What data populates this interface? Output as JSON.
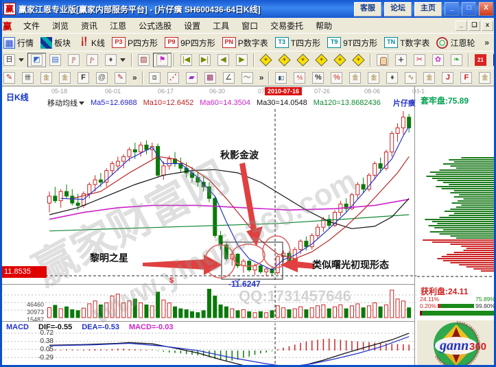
{
  "window": {
    "title": "赢家江恩专业版[赢家内部服务平台] - [片仔癀  SH600436-64日K线]",
    "buttons": [
      "客服",
      "论坛",
      "主页"
    ],
    "app_icon_glyph": "赢"
  },
  "menu": {
    "items": [
      "文件",
      "浏览",
      "资讯",
      "江恩",
      "公式选股",
      "设置",
      "工具",
      "窗口",
      "交易委托",
      "帮助"
    ]
  },
  "misc": {
    "more": "»"
  },
  "toolbar1": {
    "items": [
      {
        "icon": "grid",
        "label": "行情"
      },
      {
        "icon": "blocks",
        "label": "板块"
      },
      {
        "icon": "candle",
        "label": "K线"
      },
      {
        "badge": "P3",
        "label": "P四方形"
      },
      {
        "badge": "P9",
        "label": "9P四方形"
      },
      {
        "badge": "PN",
        "label": "P数字表"
      },
      {
        "badge": "T3",
        "tbadge": true,
        "label": "T四方形"
      },
      {
        "badge": "T9",
        "tbadge": true,
        "label": "9T四方形"
      },
      {
        "badge": "TN",
        "tbadge": true,
        "label": "T数字表"
      },
      {
        "icon": "target",
        "label": "江恩轮"
      }
    ]
  },
  "toolbar2": {
    "icons": [
      "period",
      "zigzag",
      "doc",
      "wave3",
      "wave9",
      "spindle",
      "sep",
      "pattern",
      "flag",
      "sep",
      "first",
      "last",
      "back",
      "forward",
      "sep",
      "dia",
      "dia",
      "dia",
      "dia",
      "dia",
      "dia",
      "sep",
      "hand",
      "cross",
      "scissors",
      "clip",
      "leaf",
      "sep",
      "calendar",
      "calc",
      "journal",
      "save",
      "net",
      "computer"
    ]
  },
  "toolbar3": {
    "groups": [
      {
        "icons": [
          "pen",
          "hatch",
          "goldA",
          "goldB",
          "fline",
          "spiral",
          "pen2"
        ],
        "more": "»"
      },
      {
        "icons": [
          "boxsel",
          "fan",
          "poly",
          "shade",
          "angle",
          "arcline"
        ],
        "more": "»"
      },
      {
        "icons": [
          "hist",
          "pct1",
          "pct",
          "pct2",
          "goldc",
          "golds",
          "spindle",
          "wavea",
          "goldd",
          "jl",
          "fl",
          "golde",
          "tunnel",
          "gannbox",
          "wavec"
        ],
        "more": ""
      }
    ]
  },
  "chart": {
    "period_label": "日K线",
    "ma_selector": "移动均线",
    "dates": [
      "05-18",
      "06-01",
      "06-17",
      "06-30",
      "07",
      "07-26",
      "08-06",
      "08-1"
    ],
    "crosshair_date": "2010-07-16",
    "legend": [
      {
        "t": "Ma5=12.6988",
        "c": "#2222cc"
      },
      {
        "t": "Ma10=12.6452",
        "c": "#bb2222"
      },
      {
        "t": "Ma60=14.3504",
        "c": "#cc22cc"
      },
      {
        "t": "Ma30=14.0548",
        "c": "#111111"
      },
      {
        "t": "Ma120=13.8682436",
        "c": "#118833"
      }
    ],
    "stock_name": "片仔癀",
    "price_tag": "11.8535",
    "min_label": "-11.6247",
    "dollar_mark": "$",
    "anno_autumn": "秋影金波",
    "anno_dawn_star": "黎明之星",
    "anno_dawn_pattern": "类似曙光初现形态",
    "watermark_brand": "赢家财富网",
    "watermark_site": "www.yingjia360.com",
    "watermark_qq": "QQ:1731457646"
  },
  "right_panel": {
    "trapped": "套牢盘:75.89",
    "profit": "获利盘:24.11",
    "pct_a_left": "24.11%",
    "pct_a_right": "75.89%",
    "pct_b_left": "0.20%",
    "pct_b_right": "99.80%"
  },
  "volume": {
    "ticks": [
      "46460",
      "30973",
      "15487"
    ]
  },
  "macd": {
    "name": "MACD",
    "dif": "DIF=-0.55",
    "dea": "DEA=-0.53",
    "macd": "MACD=-0.03",
    "ticks": [
      "0.72",
      "0.38",
      "0.05",
      "-0.29"
    ]
  },
  "logo": {
    "word": "gann",
    "num": "360"
  },
  "chart_data": {
    "type": "candlestick",
    "symbol": "SH600436 片仔癀",
    "colors": {
      "up": "#cc2222",
      "down": "#0a7a0a",
      "ma5": "#2233cc",
      "ma10": "#bb2222",
      "ma30": "#111111",
      "ma60": "#cc22cc",
      "ma120": "#118833"
    },
    "candles": [
      [
        13.2,
        13.45,
        13.0,
        13.35
      ],
      [
        13.35,
        13.55,
        13.2,
        13.25
      ],
      [
        13.25,
        13.5,
        13.1,
        13.45
      ],
      [
        13.45,
        13.6,
        13.3,
        13.35
      ],
      [
        13.35,
        13.5,
        13.15,
        13.2
      ],
      [
        13.2,
        13.4,
        13.05,
        13.15
      ],
      [
        13.15,
        13.45,
        13.1,
        13.4
      ],
      [
        13.4,
        13.65,
        13.3,
        13.6
      ],
      [
        13.6,
        13.8,
        13.45,
        13.7
      ],
      [
        13.7,
        13.85,
        13.55,
        13.65
      ],
      [
        13.65,
        13.95,
        13.55,
        13.9
      ],
      [
        13.9,
        14.1,
        13.8,
        14.05
      ],
      [
        14.0,
        14.2,
        13.9,
        14.1
      ],
      [
        14.1,
        14.25,
        13.95,
        14.2
      ],
      [
        14.2,
        14.4,
        14.1,
        14.35
      ],
      [
        14.35,
        14.5,
        14.15,
        14.3
      ],
      [
        14.3,
        14.52,
        14.2,
        14.45
      ],
      [
        14.45,
        14.55,
        14.25,
        14.35
      ],
      [
        14.35,
        14.5,
        14.15,
        14.42
      ],
      [
        14.42,
        14.48,
        13.75,
        13.8
      ],
      [
        13.8,
        14.1,
        13.7,
        14.0
      ],
      [
        14.0,
        14.22,
        13.92,
        14.15
      ],
      [
        14.15,
        14.3,
        13.98,
        14.05
      ],
      [
        14.05,
        14.18,
        13.85,
        13.95
      ],
      [
        13.95,
        14.08,
        13.75,
        13.85
      ],
      [
        13.85,
        13.98,
        13.65,
        13.75
      ],
      [
        13.75,
        13.88,
        13.55,
        13.65
      ],
      [
        13.65,
        13.78,
        13.45,
        13.55
      ],
      [
        13.55,
        13.65,
        13.22,
        13.3
      ],
      [
        13.3,
        13.35,
        12.45,
        12.5
      ],
      [
        12.5,
        12.6,
        12.2,
        12.3
      ],
      [
        12.3,
        12.35,
        11.95,
        12.0
      ],
      [
        12.0,
        12.15,
        11.85,
        12.1
      ],
      [
        12.1,
        12.12,
        11.8,
        11.85
      ],
      [
        11.85,
        12.0,
        11.7,
        11.95
      ],
      [
        11.95,
        11.98,
        11.72,
        11.76
      ],
      [
        11.76,
        11.9,
        11.65,
        11.85
      ],
      [
        11.85,
        11.88,
        11.68,
        11.72
      ],
      [
        11.72,
        11.82,
        11.62,
        11.78
      ],
      [
        11.78,
        11.83,
        11.64,
        11.7
      ],
      [
        11.7,
        12.08,
        11.66,
        12.05
      ],
      [
        12.05,
        12.18,
        11.92,
        12.12
      ],
      [
        12.12,
        12.16,
        11.88,
        11.95
      ],
      [
        11.95,
        12.25,
        11.9,
        12.2
      ],
      [
        12.2,
        12.42,
        12.1,
        12.38
      ],
      [
        12.38,
        12.48,
        12.18,
        12.26
      ],
      [
        12.26,
        12.55,
        12.2,
        12.5
      ],
      [
        12.5,
        12.75,
        12.42,
        12.68
      ],
      [
        12.68,
        12.9,
        12.58,
        12.85
      ],
      [
        12.85,
        12.95,
        12.65,
        12.72
      ],
      [
        12.72,
        13.05,
        12.68,
        13.0
      ],
      [
        13.0,
        13.25,
        12.92,
        13.18
      ],
      [
        13.18,
        13.3,
        13.0,
        13.08
      ],
      [
        13.08,
        13.42,
        13.05,
        13.38
      ],
      [
        13.38,
        13.65,
        13.28,
        13.6
      ],
      [
        13.6,
        13.75,
        13.42,
        13.5
      ],
      [
        13.5,
        13.85,
        13.45,
        13.8
      ],
      [
        13.8,
        14.1,
        13.7,
        14.05
      ],
      [
        14.05,
        14.18,
        13.85,
        13.95
      ],
      [
        13.95,
        14.35,
        13.9,
        14.3
      ],
      [
        14.3,
        14.75,
        14.2,
        14.7
      ],
      [
        14.7,
        14.92,
        14.52,
        14.82
      ],
      [
        14.82,
        15.18,
        14.68,
        15.05
      ],
      [
        15.05,
        15.12,
        14.72,
        14.82
      ]
    ],
    "ma_lines": {
      "ma5": [
        [
          2,
          13.3
        ],
        [
          6,
          13.28
        ],
        [
          10,
          13.7
        ],
        [
          14,
          14.15
        ],
        [
          18,
          14.4
        ],
        [
          20,
          14.05
        ],
        [
          23,
          14.05
        ],
        [
          26,
          13.75
        ],
        [
          29,
          13.35
        ],
        [
          31,
          12.8
        ],
        [
          33,
          12.3
        ],
        [
          35,
          12.0
        ],
        [
          37,
          11.88
        ],
        [
          39,
          11.76
        ],
        [
          41,
          11.98
        ],
        [
          43,
          12.08
        ],
        [
          46,
          12.32
        ],
        [
          49,
          12.65
        ],
        [
          52,
          13.0
        ],
        [
          55,
          13.42
        ],
        [
          58,
          13.88
        ],
        [
          60,
          14.15
        ],
        [
          62,
          14.65
        ],
        [
          63,
          14.85
        ]
      ],
      "ma10": [
        [
          4,
          13.3
        ],
        [
          9,
          13.45
        ],
        [
          14,
          13.85
        ],
        [
          19,
          14.2
        ],
        [
          22,
          14.15
        ],
        [
          25,
          13.95
        ],
        [
          28,
          13.7
        ],
        [
          31,
          13.3
        ],
        [
          34,
          12.85
        ],
        [
          37,
          12.4
        ],
        [
          40,
          12.1
        ],
        [
          43,
          12.0
        ],
        [
          46,
          12.15
        ],
        [
          49,
          12.4
        ],
        [
          52,
          12.7
        ],
        [
          55,
          13.05
        ],
        [
          58,
          13.45
        ],
        [
          61,
          13.85
        ],
        [
          63,
          14.2
        ]
      ],
      "ma30": [
        [
          0,
          12.95
        ],
        [
          5,
          13.1
        ],
        [
          10,
          13.35
        ],
        [
          15,
          13.6
        ],
        [
          20,
          13.8
        ],
        [
          25,
          13.9
        ],
        [
          29,
          13.92
        ],
        [
          33,
          13.85
        ],
        [
          37,
          13.65
        ],
        [
          41,
          13.35
        ],
        [
          45,
          13.05
        ],
        [
          49,
          12.8
        ],
        [
          53,
          12.65
        ],
        [
          57,
          12.7
        ],
        [
          60,
          12.9
        ],
        [
          63,
          13.3
        ]
      ],
      "ma60": [
        [
          0,
          12.85
        ],
        [
          6,
          13.0
        ],
        [
          12,
          13.1
        ],
        [
          18,
          13.15
        ],
        [
          26,
          13.15
        ],
        [
          34,
          13.1
        ],
        [
          42,
          13.05
        ],
        [
          50,
          13.08
        ],
        [
          57,
          13.15
        ],
        [
          63,
          13.28
        ]
      ],
      "ma120": [
        [
          0,
          12.6
        ],
        [
          10,
          12.64
        ],
        [
          20,
          12.68
        ],
        [
          30,
          12.72
        ],
        [
          40,
          12.76
        ],
        [
          50,
          12.84
        ],
        [
          63,
          12.95
        ]
      ]
    },
    "volume": [
      20460,
      25320,
      18210,
      22140,
      16250,
      14320,
      19480,
      28350,
      34210,
      26140,
      30250,
      44360,
      48230,
      30120,
      34260,
      38140,
      30220,
      26180,
      24150,
      52340,
      36210,
      30140,
      22260,
      18130,
      16240,
      12310,
      10270,
      14180,
      58340,
      44310,
      26150,
      22240,
      18160,
      14120,
      16230,
      12140,
      10180,
      12260,
      10140,
      14230,
      24310,
      20180,
      16240,
      18150,
      22320,
      16210,
      20140,
      24260,
      26180,
      18140,
      22250,
      26310,
      18170,
      24140,
      28260,
      20190,
      24230,
      30310,
      22150,
      26240,
      56380,
      38220,
      34160,
      20130
    ],
    "macd_hist": [
      0.03,
      0.04,
      0.03,
      0.05,
      0.04,
      0.03,
      0.04,
      0.05,
      0.06,
      0.05,
      0.04,
      0.06,
      0.08,
      0.08,
      0.06,
      0.05,
      0.04,
      0.03,
      0.02,
      -0.02,
      -0.05,
      -0.08,
      -0.1,
      -0.12,
      -0.15,
      -0.18,
      -0.2,
      -0.22,
      -0.28,
      -0.35,
      -0.4,
      -0.45,
      -0.42,
      -0.38,
      -0.3,
      -0.25,
      -0.18,
      -0.12,
      -0.08,
      -0.03,
      0.05,
      0.12,
      0.18,
      0.25,
      0.32,
      0.38,
      0.42,
      0.45,
      0.48,
      0.5,
      0.48,
      0.45,
      0.42,
      0.4,
      0.38,
      0.36,
      0.35,
      0.33,
      0.32,
      0.3,
      0.28,
      0.27,
      0.26,
      0.25
    ],
    "dif_line": [
      [
        0,
        0.22
      ],
      [
        6,
        0.25
      ],
      [
        12,
        0.3
      ],
      [
        14,
        0.33
      ],
      [
        18,
        0.28
      ],
      [
        22,
        0.1
      ],
      [
        26,
        -0.1
      ],
      [
        30,
        -0.38
      ],
      [
        34,
        -0.62
      ],
      [
        38,
        -0.78
      ],
      [
        41,
        -0.8
      ],
      [
        44,
        -0.65
      ],
      [
        48,
        -0.4
      ],
      [
        52,
        -0.1
      ],
      [
        56,
        0.18
      ],
      [
        60,
        0.45
      ],
      [
        63,
        0.72
      ]
    ],
    "dea_line": [
      [
        0,
        0.2
      ],
      [
        8,
        0.24
      ],
      [
        14,
        0.3
      ],
      [
        20,
        0.18
      ],
      [
        26,
        0.0
      ],
      [
        32,
        -0.3
      ],
      [
        38,
        -0.55
      ],
      [
        42,
        -0.68
      ],
      [
        46,
        -0.55
      ],
      [
        50,
        -0.35
      ],
      [
        54,
        -0.12
      ],
      [
        58,
        0.15
      ],
      [
        63,
        0.58
      ]
    ],
    "chip_bars": {
      "green": [
        0.45,
        0.62,
        0.55,
        0.7,
        0.6,
        0.52,
        0.75,
        0.88,
        0.8,
        0.93,
        0.85,
        0.78,
        0.7,
        0.62,
        0.8,
        0.72,
        0.55,
        0.6,
        0.48,
        0.55,
        0.42,
        0.5,
        0.58,
        0.45,
        0.52,
        0.6,
        0.68,
        0.55,
        0.62,
        0.75,
        0.95,
        0.85,
        0.78,
        0.9,
        0.82,
        0.7,
        0.88,
        0.75,
        0.6,
        0.52
      ],
      "red": [
        0.98,
        0.85,
        0.6,
        0.45,
        0.38,
        0.42,
        0.55,
        0.65,
        0.72,
        0.78,
        0.7,
        0.6,
        0.48,
        0.38,
        0.28,
        0.18
      ]
    },
    "volume_ticks": [
      46460,
      30973,
      15487
    ],
    "macd_ticks": [
      0.72,
      0.38,
      0.05,
      -0.29
    ]
  }
}
